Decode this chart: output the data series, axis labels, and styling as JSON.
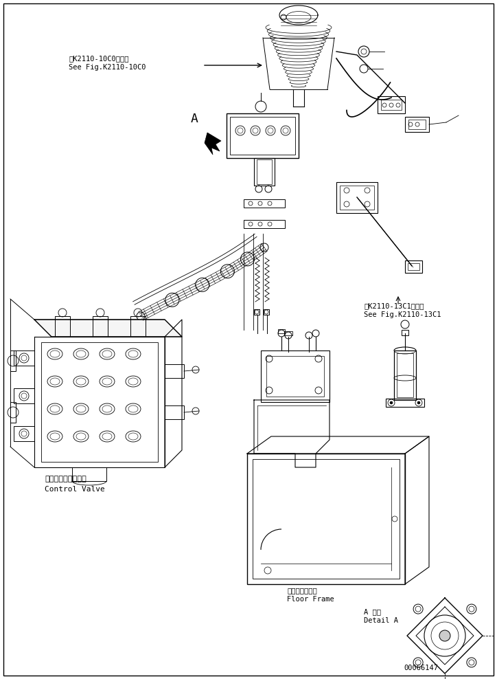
{
  "bg_color": "#ffffff",
  "line_color": "#000000",
  "fig_width": 7.24,
  "fig_height": 9.88,
  "dpi": 100,
  "labels": {
    "see_fig_1_jp": "第K2110-10C0図参照",
    "see_fig_1_en": "See Fig.K2110-10C0",
    "see_fig_2_jp": "第K2110-13C1図参照",
    "see_fig_2_en": "See Fig.K2110-13C1",
    "control_valve_jp": "コントロールバルブ",
    "control_valve_en": "Control Valve",
    "floor_frame_jp": "フロアフレーム",
    "floor_frame_en": "Floor Frame",
    "detail_a_jp": "A 詳細",
    "detail_a_en": "Detail A",
    "label_a": "A",
    "part_num": "00066147"
  },
  "font_sizes": {
    "small": 7.5,
    "medium": 8,
    "large": 9
  }
}
